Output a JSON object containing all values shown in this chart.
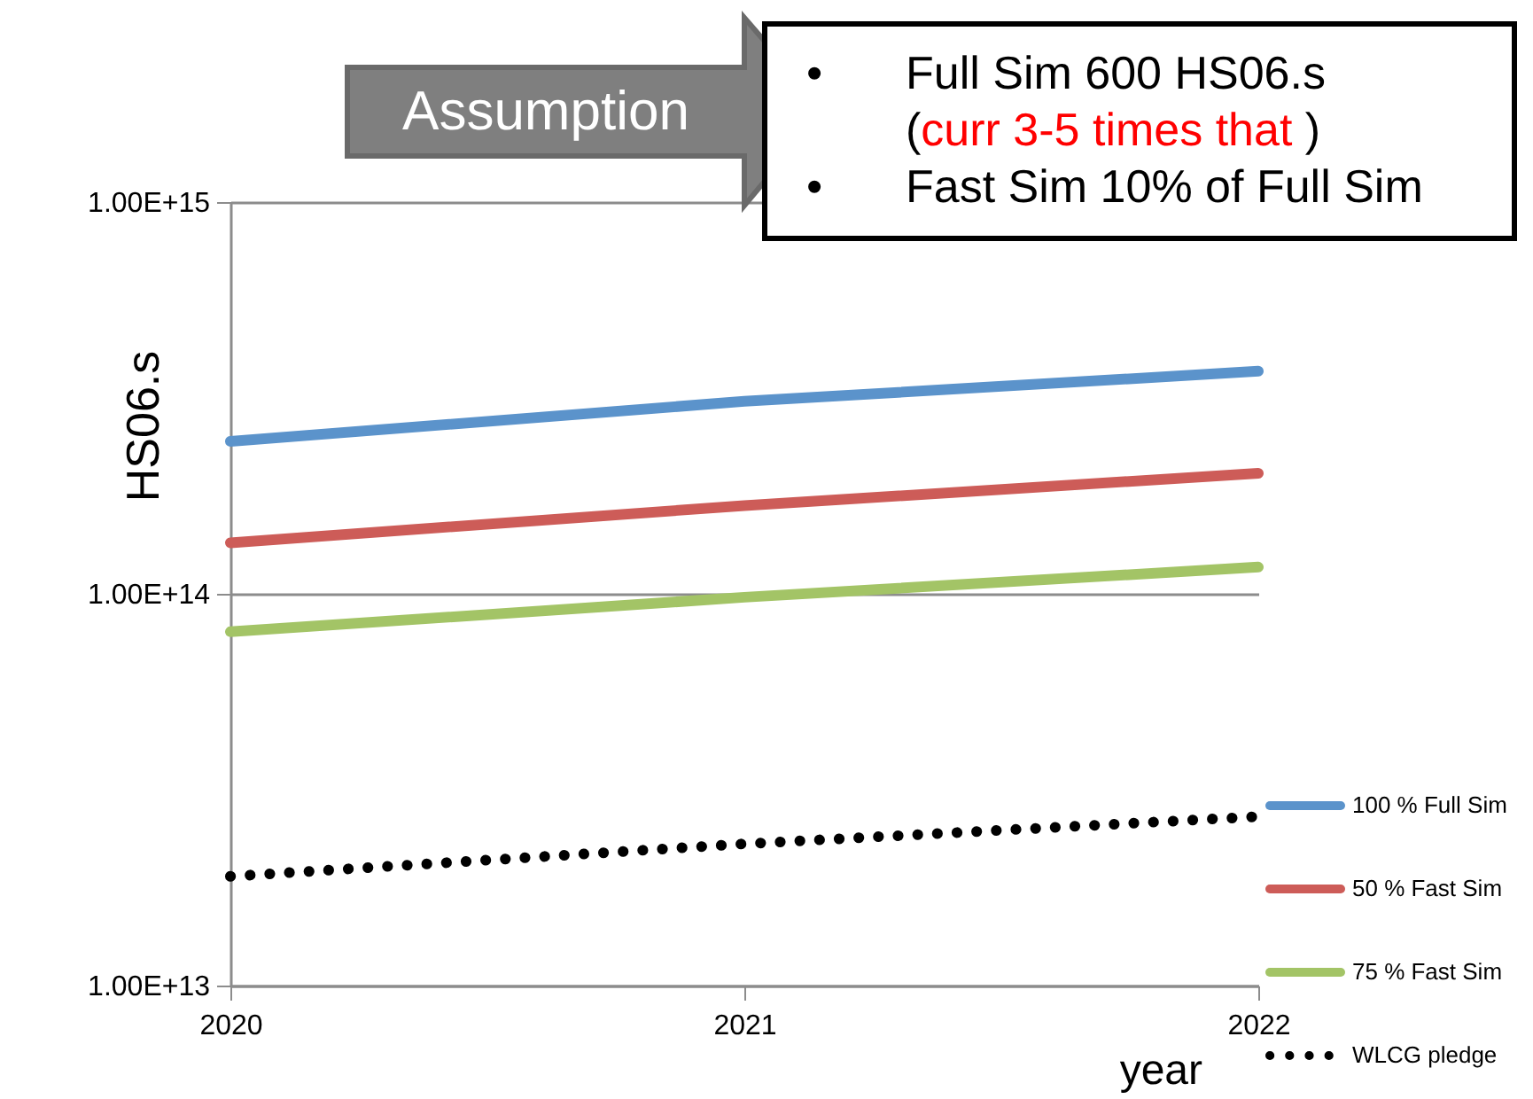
{
  "chart_data": {
    "type": "line",
    "xlabel": "year",
    "ylabel": "HS06.s",
    "x": [
      2020,
      2021,
      2022
    ],
    "series": [
      {
        "name": "100 % Full Sim",
        "color": "#5b93cb",
        "line_style": "solid",
        "values": [
          245000000000000.0,
          310000000000000.0,
          370000000000000.0
        ]
      },
      {
        "name": "50 % Fast Sim",
        "color": "#cd5c58",
        "line_style": "solid",
        "values": [
          135000000000000.0,
          168000000000000.0,
          203000000000000.0
        ]
      },
      {
        "name": "75 % Fast Sim",
        "color": "#a3c466",
        "line_style": "solid",
        "values": [
          80000000000000.0,
          98000000000000.0,
          117000000000000.0
        ]
      },
      {
        "name": "WLCG pledge",
        "color": "#000000",
        "line_style": "dotted",
        "values": [
          19000000000000.0,
          23000000000000.0,
          27000000000000.0
        ]
      }
    ],
    "log": "y",
    "xlim": [
      2020,
      2022
    ],
    "xticks": [
      2020,
      2021,
      2022
    ],
    "ylim": [
      10000000000000.0,
      1000000000000000.0
    ],
    "yticks": [
      {
        "value": 10000000000000.0,
        "label": "1.00E+13"
      },
      {
        "value": 100000000000000.0,
        "label": "1.00E+14"
      },
      {
        "value": 1000000000000000.0,
        "label": "1.00E+15"
      }
    ],
    "grid": "y",
    "legend": "bottom right",
    "marker": "none",
    "annotations": [
      "Assumption",
      "•",
      "Full Sim 600 HS06.s",
      "(curr 3-5 times that )",
      "•",
      "Fast Sim 10% of Full Sim"
    ]
  }
}
